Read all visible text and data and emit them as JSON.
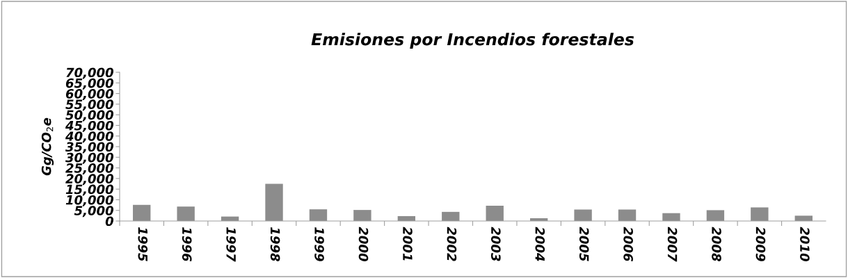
{
  "chart_data": {
    "type": "bar",
    "title": "Emisiones por Incendios forestales",
    "ylabel": "Gg/CO$_{2}$e",
    "categories": [
      "1995",
      "1996",
      "1997",
      "1998",
      "1999",
      "2000",
      "2001",
      "2002",
      "2003",
      "2004",
      "2005",
      "2006",
      "2007",
      "2008",
      "2009",
      "2010"
    ],
    "values": [
      7600,
      6800,
      2100,
      17500,
      5500,
      5200,
      2300,
      4300,
      7200,
      1300,
      5400,
      5400,
      3700,
      5100,
      6400,
      2500
    ],
    "color": "#8c8c8c",
    "ylim": [
      0,
      70000
    ],
    "yticks": [
      {
        "value": 0,
        "label": "0"
      },
      {
        "value": 5000,
        "label": "5,000"
      },
      {
        "value": 10000,
        "label": "10,000"
      },
      {
        "value": 15000,
        "label": "15,000"
      },
      {
        "value": 20000,
        "label": "20,000"
      },
      {
        "value": 25000,
        "label": "25,000"
      },
      {
        "value": 30000,
        "label": "30,000"
      },
      {
        "value": 35000,
        "label": "35,000"
      },
      {
        "value": 40000,
        "label": "40,000"
      },
      {
        "value": 45000,
        "label": "45,000"
      },
      {
        "value": 50000,
        "label": "50,000"
      },
      {
        "value": 55000,
        "label": "55,000"
      },
      {
        "value": 60000,
        "label": "60,000"
      },
      {
        "value": 65000,
        "label": "65,000"
      },
      {
        "value": 70000,
        "label": "70,000"
      }
    ],
    "grid": false,
    "legend": false
  }
}
